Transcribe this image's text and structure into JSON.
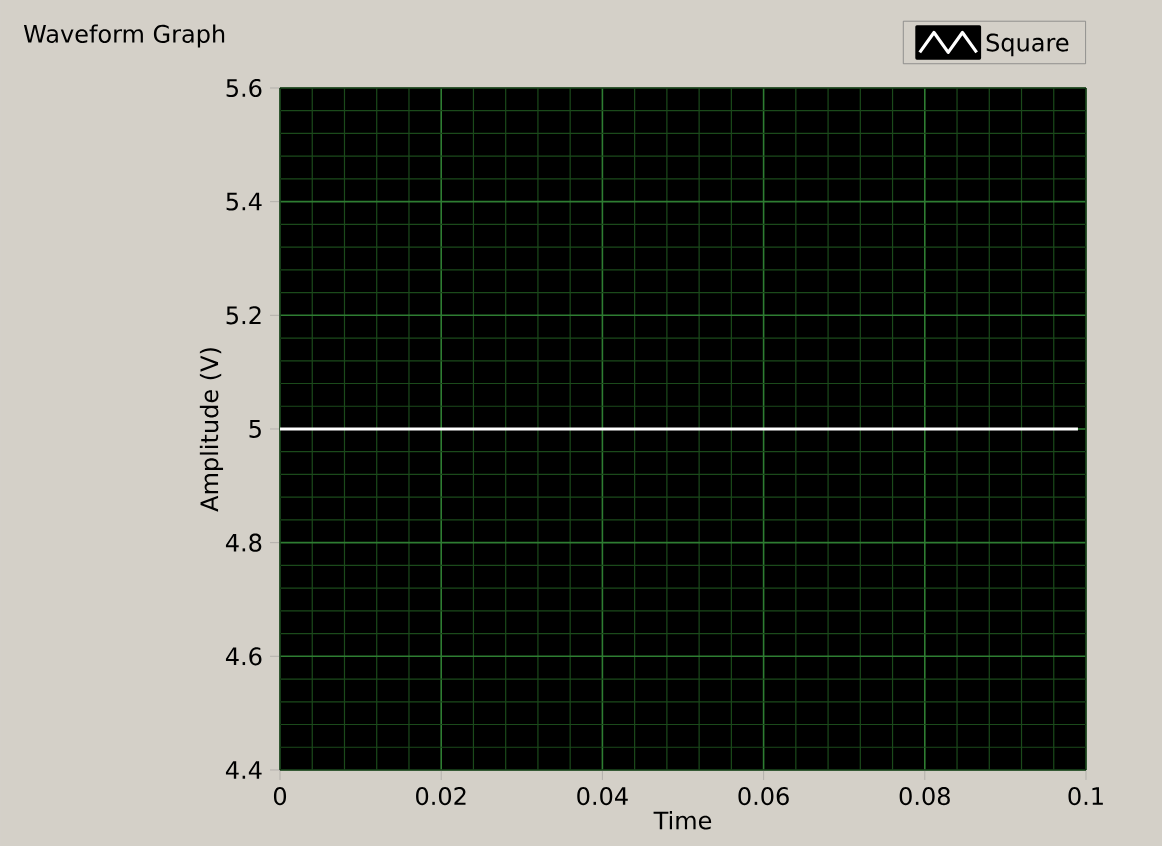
{
  "chart_data": {
    "type": "line",
    "title": "Waveform Graph",
    "xlabel": "Time",
    "ylabel": "Amplitude (V)",
    "xlim": [
      0,
      0.1
    ],
    "ylim": [
      4.4,
      5.6
    ],
    "xticks": [
      0,
      {
        "value": 0.004,
        "label": null
      },
      {
        "value": 0.008,
        "label": null
      },
      {
        "value": 0.012,
        "label": null
      },
      {
        "value": 0.016,
        "label": null
      },
      0.02,
      {
        "value": 0.024,
        "label": null
      },
      {
        "value": 0.028,
        "label": null
      },
      {
        "value": 0.032,
        "label": null
      },
      {
        "value": 0.036,
        "label": null
      },
      0.04,
      {
        "value": 0.044,
        "label": null
      },
      {
        "value": 0.048,
        "label": null
      },
      {
        "value": 0.052,
        "label": null
      },
      {
        "value": 0.056,
        "label": null
      },
      0.06,
      {
        "value": 0.064,
        "label": null
      },
      {
        "value": 0.068,
        "label": null
      },
      {
        "value": 0.072,
        "label": null
      },
      {
        "value": 0.076,
        "label": null
      },
      0.08,
      {
        "value": 0.084,
        "label": null
      },
      {
        "value": 0.088,
        "label": null
      },
      {
        "value": 0.092,
        "label": null
      },
      {
        "value": 0.096,
        "label": null
      },
      0.1
    ],
    "yticks": [
      4.4,
      {
        "value": 4.44,
        "label": null
      },
      {
        "value": 4.48,
        "label": null
      },
      {
        "value": 4.52,
        "label": null
      },
      {
        "value": 4.56,
        "label": null
      },
      4.6,
      {
        "value": 4.64,
        "label": null
      },
      {
        "value": 4.68,
        "label": null
      },
      {
        "value": 4.72,
        "label": null
      },
      {
        "value": 4.76,
        "label": null
      },
      4.8,
      {
        "value": 4.84,
        "label": null
      },
      {
        "value": 4.88,
        "label": null
      },
      {
        "value": 4.92,
        "label": null
      },
      {
        "value": 4.96,
        "label": null
      },
      5,
      {
        "value": 5.04,
        "label": null
      },
      {
        "value": 5.08,
        "label": null
      },
      {
        "value": 5.12,
        "label": null
      },
      {
        "value": 5.16,
        "label": null
      },
      5.2,
      {
        "value": 5.24,
        "label": null
      },
      {
        "value": 5.28,
        "label": null
      },
      {
        "value": 5.32,
        "label": null
      },
      {
        "value": 5.36,
        "label": null
      },
      5.4,
      {
        "value": 5.44,
        "label": null
      },
      {
        "value": 5.48,
        "label": null
      },
      {
        "value": 5.52,
        "label": null
      },
      {
        "value": 5.56,
        "label": null
      },
      5.6
    ],
    "series": [
      {
        "name": "Square",
        "color": "#ffffff",
        "x": [
          0,
          0.099
        ],
        "values": [
          5,
          5
        ]
      }
    ],
    "grid": true,
    "legend": "top right",
    "marker": "none",
    "line_style": "solid"
  }
}
